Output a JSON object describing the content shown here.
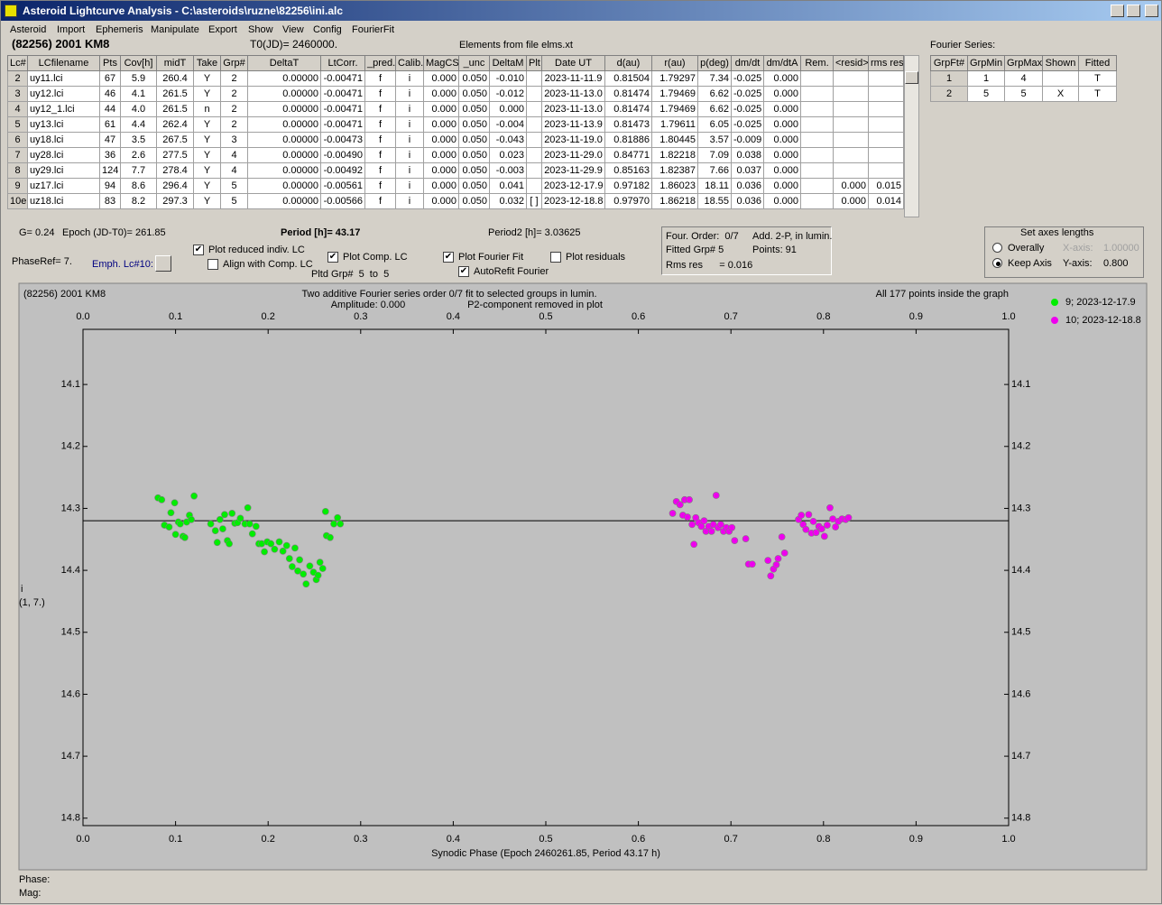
{
  "window": {
    "title": "Asteroid Lightcurve Analysis - C:\\asteroids\\ruzne\\82256\\ini.alc",
    "menu": [
      "Asteroid",
      "Import",
      "Ephemeris",
      "Manipulate",
      "Export",
      "Show",
      "View",
      "Config",
      "FourierFit"
    ]
  },
  "header": {
    "object": "(82256) 2001 KM8",
    "t0": "T0(JD)= 2460000.",
    "elements": "Elements from file elms.xt"
  },
  "table": {
    "columns": [
      "Lc#",
      "LCfilename",
      "Pts",
      "Cov[h]",
      "midT",
      "Take",
      "Grp#",
      "DeltaT",
      "LtCorr.",
      "_pred.",
      "Calib.",
      "MagCS",
      "_unc",
      "DeltaM",
      "Plt",
      "Date UT",
      "d(au)",
      "r(au)",
      "p(deg)",
      "dm/dt",
      "dm/dtA",
      "Rem.",
      "<resid>",
      "rms res"
    ],
    "rows": [
      [
        "2",
        "uy11.lci",
        "67",
        "5.9",
        "260.4",
        "Y",
        "2",
        "0.00000",
        "-0.00471",
        "f",
        "i",
        "0.000",
        "0.050",
        "-0.010",
        null,
        "2023-11-11.9",
        "0.81504",
        "1.79297",
        "7.34",
        "-0.025",
        "0.000",
        null,
        null,
        null
      ],
      [
        "3",
        "uy12.lci",
        "46",
        "4.1",
        "261.5",
        "Y",
        "2",
        "0.00000",
        "-0.00471",
        "f",
        "i",
        "0.000",
        "0.050",
        "-0.012",
        null,
        "2023-11-13.0",
        "0.81474",
        "1.79469",
        "6.62",
        "-0.025",
        "0.000",
        null,
        null,
        null
      ],
      [
        "4",
        "uy12_1.lci",
        "44",
        "4.0",
        "261.5",
        "n",
        "2",
        "0.00000",
        "-0.00471",
        "f",
        "i",
        "0.000",
        "0.050",
        "0.000",
        null,
        "2023-11-13.0",
        "0.81474",
        "1.79469",
        "6.62",
        "-0.025",
        "0.000",
        null,
        null,
        null
      ],
      [
        "5",
        "uy13.lci",
        "61",
        "4.4",
        "262.4",
        "Y",
        "2",
        "0.00000",
        "-0.00471",
        "f",
        "i",
        "0.000",
        "0.050",
        "-0.004",
        null,
        "2023-11-13.9",
        "0.81473",
        "1.79611",
        "6.05",
        "-0.025",
        "0.000",
        null,
        null,
        null
      ],
      [
        "6",
        "uy18.lci",
        "47",
        "3.5",
        "267.5",
        "Y",
        "3",
        "0.00000",
        "-0.00473",
        "f",
        "i",
        "0.000",
        "0.050",
        "-0.043",
        null,
        "2023-11-19.0",
        "0.81886",
        "1.80445",
        "3.57",
        "-0.009",
        "0.000",
        null,
        null,
        null
      ],
      [
        "7",
        "uy28.lci",
        "36",
        "2.6",
        "277.5",
        "Y",
        "4",
        "0.00000",
        "-0.00490",
        "f",
        "i",
        "0.000",
        "0.050",
        "0.023",
        null,
        "2023-11-29.0",
        "0.84771",
        "1.82218",
        "7.09",
        "0.038",
        "0.000",
        null,
        null,
        null
      ],
      [
        "8",
        "uy29.lci",
        "124",
        "7.7",
        "278.4",
        "Y",
        "4",
        "0.00000",
        "-0.00492",
        "f",
        "i",
        "0.000",
        "0.050",
        "-0.003",
        null,
        "2023-11-29.9",
        "0.85163",
        "1.82387",
        "7.66",
        "0.037",
        "0.000",
        null,
        null,
        null
      ],
      [
        "9",
        "uz17.lci",
        "94",
        "8.6",
        "296.4",
        "Y",
        "5",
        "0.00000",
        "-0.00561",
        "f",
        "i",
        "0.000",
        "0.050",
        "0.041",
        null,
        "2023-12-17.9",
        "0.97182",
        "1.86023",
        "18.11",
        "0.036",
        "0.000",
        null,
        "0.000",
        "0.015"
      ],
      [
        "10e",
        "uz18.lci",
        "83",
        "8.2",
        "297.3",
        "Y",
        "5",
        "0.00000",
        "-0.00566",
        "f",
        "i",
        "0.000",
        "0.050",
        "0.032",
        "[ ]",
        "2023-12-18.8",
        "0.97970",
        "1.86218",
        "18.55",
        "0.036",
        "0.000",
        null,
        "0.000",
        "0.014"
      ]
    ]
  },
  "fourier": {
    "title": "Fourier Series:",
    "columns": [
      "GrpFt#",
      "GrpMin",
      "GrpMax",
      "Shown",
      "Fitted"
    ],
    "rows": [
      [
        "1",
        "1",
        "4",
        null,
        "T"
      ],
      [
        "2",
        "5",
        "5",
        "X",
        "T"
      ]
    ]
  },
  "info": {
    "g": "G= 0.24",
    "epoch": "Epoch (JD-T0)= 261.85",
    "period": "Period [h]= 43.17",
    "period2": "Period2 [h]= 3.03625",
    "phaseref": "PhaseRef= 7.",
    "emph": "Emph. Lc#10:",
    "pltd": "Pltd Grp#  5  to  5"
  },
  "checkboxes": [
    {
      "label": "Plot reduced indiv. LC",
      "checked": true
    },
    {
      "label": "Align with Comp. LC",
      "checked": false
    },
    {
      "label": "Plot Comp. LC",
      "checked": true
    },
    {
      "label": "Plot Fourier Fit",
      "checked": true
    },
    {
      "label": "Plot residuals",
      "checked": false
    },
    {
      "label": "AutoRefit Fourier",
      "checked": true
    }
  ],
  "status": {
    "order": "Four. Order:  0/7",
    "add": "Add. 2-P, in lumin.",
    "fitted": "Fitted Grp# 5",
    "points": "Points: 91",
    "rms": "Rms res      = 0.016"
  },
  "axes_box": {
    "title": "Set axes lengths",
    "options": [
      {
        "label": "Overally",
        "selected": false
      },
      {
        "label": "Keep Axis",
        "selected": true
      }
    ],
    "x_axis": "X-axis:",
    "x_value": "1.00000",
    "y_axis": "Y-axis:",
    "y_value": "0.800"
  },
  "chart_data": {
    "type": "scatter",
    "title": "(82256) 2001 KM8",
    "subtitle": [
      "Two additive Fourier series order 0/7 fit to selected groups in lumin.",
      "Amplitude: 0.000",
      "P2-component removed in plot"
    ],
    "note": "All 177 points inside the graph",
    "xlabel": "Synodic Phase (Epoch 2460261.85, Period 43.17 h)",
    "ylabel": [
      "i",
      "(1, 7.)"
    ],
    "xlim": [
      0,
      1
    ],
    "ylim": [
      14.011,
      14.812
    ],
    "y_inverted": true,
    "xticks": [
      {
        "value": 0,
        "label": "0.0"
      },
      0.1,
      0.2,
      0.3,
      0.4,
      0.5,
      0.6,
      0.7,
      0.8,
      0.9,
      {
        "value": 1,
        "label": "1.0"
      }
    ],
    "yticks": [
      14.1,
      14.2,
      14.3,
      14.4,
      14.5,
      14.6,
      14.7,
      14.8
    ],
    "fit_line": 14.32,
    "legend": "right",
    "series": [
      {
        "name": "9; 2023-12-17.9",
        "color": "#00ee00",
        "x": [
          0.081,
          0.085,
          0.088,
          0.093,
          0.095,
          0.099,
          0.1,
          0.103,
          0.105,
          0.108,
          0.11,
          0.112,
          0.115,
          0.117,
          0.12,
          0.138,
          0.143,
          0.145,
          0.148,
          0.151,
          0.153,
          0.156,
          0.158,
          0.161,
          0.164,
          0.167,
          0.17,
          0.175,
          0.178,
          0.18,
          0.183,
          0.187,
          0.19,
          0.193,
          0.196,
          0.199,
          0.203,
          0.207,
          0.212,
          0.216,
          0.22,
          0.223,
          0.226,
          0.229,
          0.232,
          0.234,
          0.238,
          0.241,
          0.245,
          0.249,
          0.252,
          0.254,
          0.256,
          0.259,
          0.262,
          0.263,
          0.267,
          0.271,
          0.275,
          0.278
        ],
        "values": [
          14.283,
          14.286,
          14.327,
          14.33,
          14.307,
          14.291,
          14.342,
          14.322,
          14.325,
          14.345,
          14.347,
          14.322,
          14.311,
          14.318,
          14.28,
          14.325,
          14.336,
          14.355,
          14.318,
          14.333,
          14.31,
          14.352,
          14.357,
          14.308,
          14.324,
          14.323,
          14.316,
          14.325,
          14.299,
          14.325,
          14.341,
          14.329,
          14.357,
          14.357,
          14.37,
          14.354,
          14.357,
          14.366,
          14.354,
          14.369,
          14.36,
          14.381,
          14.394,
          14.364,
          14.401,
          14.383,
          14.406,
          14.422,
          14.393,
          14.403,
          14.415,
          14.408,
          14.387,
          14.397,
          14.305,
          14.344,
          14.347,
          14.325,
          14.315,
          14.325
        ]
      },
      {
        "name": "10; 2023-12-18.8",
        "color": "#ee00ee",
        "x": [
          0.637,
          0.641,
          0.645,
          0.648,
          0.65,
          0.653,
          0.655,
          0.658,
          0.66,
          0.662,
          0.665,
          0.668,
          0.671,
          0.673,
          0.676,
          0.679,
          0.681,
          0.684,
          0.686,
          0.689,
          0.692,
          0.695,
          0.698,
          0.701,
          0.704,
          0.716,
          0.719,
          0.723,
          0.74,
          0.743,
          0.746,
          0.749,
          0.751,
          0.755,
          0.758,
          0.773,
          0.776,
          0.778,
          0.781,
          0.784,
          0.787,
          0.789,
          0.792,
          0.795,
          0.798,
          0.801,
          0.804,
          0.807,
          0.81,
          0.813,
          0.816,
          0.82,
          0.824,
          0.827
        ],
        "values": [
          14.308,
          14.289,
          14.294,
          14.311,
          14.286,
          14.314,
          14.286,
          14.326,
          14.358,
          14.315,
          14.323,
          14.329,
          14.32,
          14.337,
          14.329,
          14.337,
          14.326,
          14.279,
          14.331,
          14.326,
          14.337,
          14.331,
          14.337,
          14.331,
          14.352,
          14.349,
          14.39,
          14.39,
          14.384,
          14.409,
          14.398,
          14.391,
          14.381,
          14.346,
          14.372,
          14.318,
          14.311,
          14.326,
          14.334,
          14.31,
          14.34,
          14.321,
          14.339,
          14.329,
          14.333,
          14.345,
          14.327,
          14.299,
          14.317,
          14.33,
          14.321,
          14.317,
          14.318,
          14.315
        ]
      }
    ]
  },
  "footer": {
    "phase": "Phase:",
    "mag": "Mag:"
  }
}
